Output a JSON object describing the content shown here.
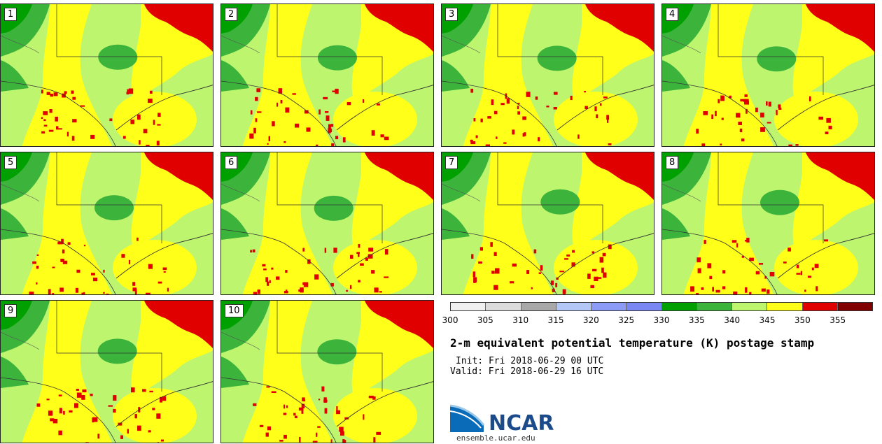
{
  "title": "2-m equivalent potential temperature (K) postage stamp",
  "init": "Init: Fri 2018-06-29 00 UTC",
  "valid": "Valid: Fri 2018-06-29 16 UTC",
  "colorbar": {
    "ticks": [
      "300",
      "305",
      "310",
      "315",
      "320",
      "325",
      "330",
      "335",
      "340",
      "345",
      "350",
      "355"
    ],
    "colors": [
      "#f0f0f0",
      "#dcdcdc",
      "#a8a8a8",
      "#b4c8f8",
      "#8c9cf6",
      "#7a86f2",
      "#00a000",
      "#3cb43c",
      "#bdf56e",
      "#ffff1a",
      "#e00000",
      "#800000"
    ]
  },
  "panels": [
    {
      "label": "1"
    },
    {
      "label": "2"
    },
    {
      "label": "3"
    },
    {
      "label": "4"
    },
    {
      "label": "5"
    },
    {
      "label": "6"
    },
    {
      "label": "7"
    },
    {
      "label": "8"
    },
    {
      "label": "9"
    },
    {
      "label": "10"
    }
  ],
  "logo": {
    "name": "NCAR",
    "url": "ensemble.ucar.edu"
  }
}
